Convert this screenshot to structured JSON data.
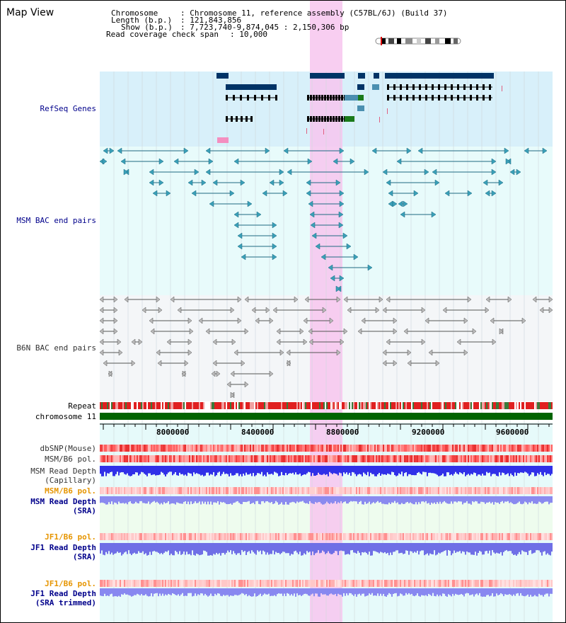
{
  "view_title": "Map View",
  "header": {
    "chromosome_label": "Chromosome",
    "chromosome_value": ": Chromosome 11, reference assembly (C57BL/6J) (Build 37)",
    "length_label": "Length (b.p.)",
    "length_value": ": 121,843,856",
    "show_label": "Show (b.p.)",
    "show_value": ": 7,723,740-9,874,045 : 2,150,306 bp",
    "read_cov_label": "Read coverage check span",
    "read_cov_value": ": 10,000"
  },
  "tracks": {
    "refseq": "RefSeq Genes",
    "msm_bac": "MSM BAC end pairs",
    "b6n_bac": "B6N BAC end pairs",
    "repeat": "Repeat",
    "chromosome": "chromosome 11",
    "dbsnp": "dbSNP(Mouse)",
    "msm_b6_pol": "MSM/B6 pol.",
    "msm_read_depth_cap": "MSM Read Depth\n(Capillary)",
    "msm_b6_pol2": "MSM/B6 pol.",
    "msm_read_depth_sra": "MSM Read Depth\n(SRA)",
    "jf1_b6_pol": "JF1/B6 pol.",
    "jf1_read_depth_sra": "JF1 Read Depth\n(SRA)",
    "jf1_b6_pol2": "JF1/B6 pol.",
    "jf1_read_depth_trim": "JF1 Read Depth\n(SRA trimmed)"
  },
  "axis": {
    "ticks": [
      "8000000",
      "8400000",
      "8800000",
      "9200000",
      "9600000"
    ]
  },
  "colors": {
    "refseq_bg": "#d8f0fa",
    "bac_bg": "#e8fbfb",
    "b6n_bg": "#f4f6f8",
    "highlight": "#f7c6ee",
    "label_blue": "#00008b",
    "label_orange": "#e69500",
    "gene_dark": "#003366",
    "chromosome_green": "#006400"
  }
}
